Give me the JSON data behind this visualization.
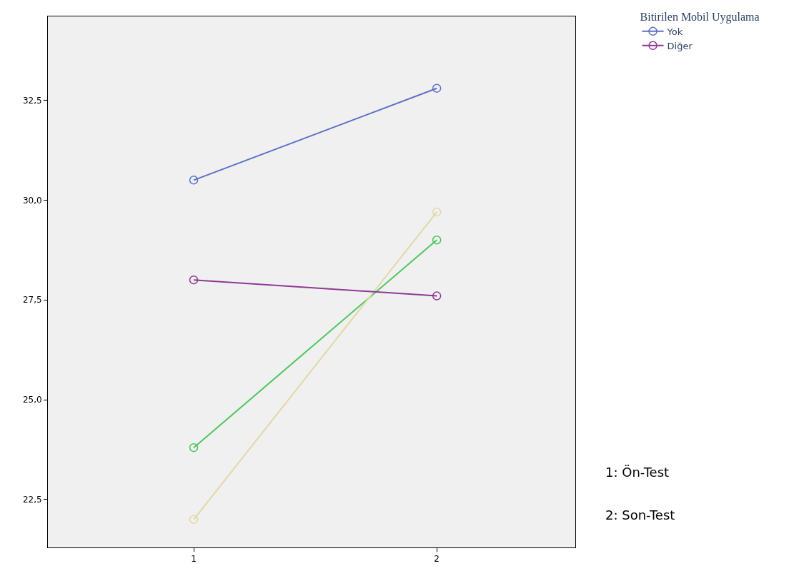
{
  "chart_data": {
    "type": "line",
    "x": [
      1,
      2
    ],
    "xlim": [
      0.4,
      2.57
    ],
    "xticks": [
      1,
      2
    ],
    "ylim": [
      21.3,
      34.6
    ],
    "yticks": [
      {
        "value": 22.5,
        "label": "22,5"
      },
      {
        "value": 25,
        "label": "25,0"
      },
      {
        "value": 27.5,
        "label": "27,5"
      },
      {
        "value": 30,
        "label": "30,0"
      },
      {
        "value": 32.5,
        "label": "32,5"
      }
    ],
    "series": [
      {
        "name": "Yok",
        "color": "#5b6fc6",
        "values": [
          30.5,
          32.8
        ]
      },
      {
        "color": "#4cc65c",
        "values": [
          23.8,
          29.0
        ]
      },
      {
        "color": "#e0d8a6",
        "values": [
          22.0,
          29.7
        ]
      },
      {
        "name": "Diğer",
        "color": "#8e3a92",
        "values": [
          28.0,
          27.6
        ]
      }
    ],
    "legend_title": "Bitirilen Mobil Uygulama",
    "legend": "top right",
    "marker": "circle",
    "line_style": "solid",
    "grid": false,
    "annotations": [
      "1: Ön-Test",
      "2: Son-Test"
    ]
  }
}
